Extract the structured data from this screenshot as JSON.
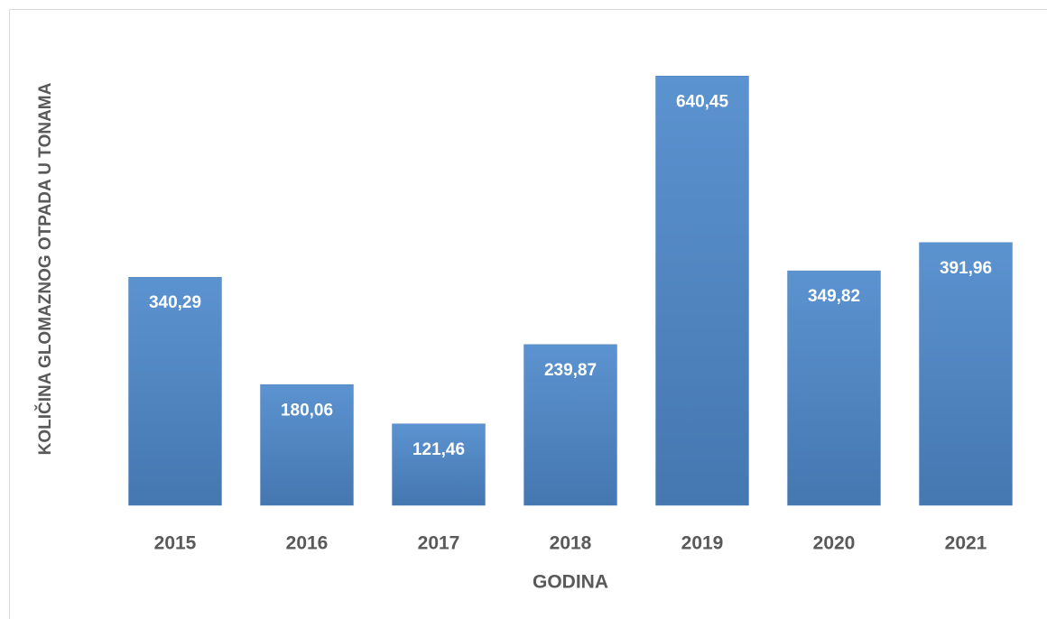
{
  "chart_data": {
    "type": "bar",
    "x_label": "GODINA",
    "y_label": "KOLIČINA GLOMAZNOG OTPADA U TONAMA",
    "categories": [
      "2015",
      "2016",
      "2017",
      "2018",
      "2019",
      "2020",
      "2021"
    ],
    "values": [
      340.29,
      180.06,
      121.46,
      239.87,
      640.45,
      349.82,
      391.96
    ],
    "value_labels": [
      "340,29",
      "180,06",
      "121,46",
      "239,87",
      "640,45",
      "349,82",
      "391,96"
    ],
    "color": "#4f81bd",
    "ylim": [
      0,
      700
    ],
    "grid": false
  }
}
